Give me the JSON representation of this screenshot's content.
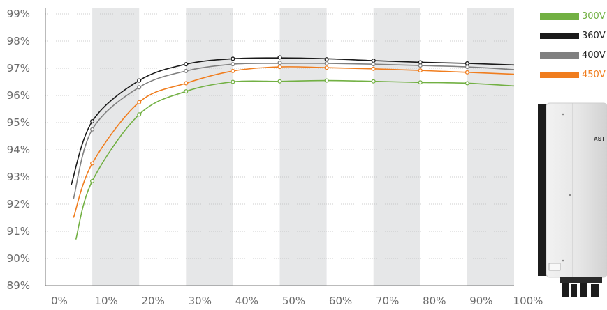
{
  "chart_data": {
    "type": "line",
    "xlabel": "",
    "ylabel": "",
    "x_ticks": [
      "0%",
      "10%",
      "20%",
      "30%",
      "40%",
      "50%",
      "60%",
      "70%",
      "80%",
      "90%",
      "100%"
    ],
    "y_ticks": [
      "99%",
      "98%",
      "97%",
      "96%",
      "95%",
      "94%",
      "93%",
      "92%",
      "91%",
      "90%",
      "89%"
    ],
    "xlim": [
      0,
      100
    ],
    "ylim": [
      89,
      99
    ],
    "grid": "horizontal dotted lines with alternating vertical gray bands",
    "legend_position": "right",
    "series": [
      {
        "name": "300V",
        "color": "#72b043",
        "curve": [
          [
            6.5,
            90.7
          ],
          [
            10,
            92.85
          ],
          [
            20,
            95.3
          ],
          [
            30,
            96.15
          ],
          [
            40,
            96.5
          ],
          [
            50,
            96.52
          ],
          [
            60,
            96.55
          ],
          [
            70,
            96.52
          ],
          [
            80,
            96.48
          ],
          [
            90,
            96.45
          ],
          [
            100,
            96.35
          ]
        ],
        "markers": [
          [
            10,
            92.85
          ],
          [
            20,
            95.3
          ],
          [
            30,
            96.15
          ],
          [
            40,
            96.5
          ],
          [
            50,
            96.52
          ],
          [
            60,
            96.55
          ],
          [
            70,
            96.52
          ],
          [
            80,
            96.48
          ],
          [
            90,
            96.45
          ]
        ]
      },
      {
        "name": "360V",
        "color": "#1a1a1a",
        "curve": [
          [
            5.5,
            92.7
          ],
          [
            10,
            95.05
          ],
          [
            20,
            96.55
          ],
          [
            30,
            97.15
          ],
          [
            40,
            97.35
          ],
          [
            50,
            97.38
          ],
          [
            60,
            97.35
          ],
          [
            70,
            97.28
          ],
          [
            80,
            97.22
          ],
          [
            90,
            97.18
          ],
          [
            100,
            97.12
          ]
        ],
        "markers": [
          [
            10,
            95.05
          ],
          [
            20,
            96.55
          ],
          [
            30,
            97.15
          ],
          [
            40,
            97.35
          ],
          [
            50,
            97.4
          ],
          [
            60,
            97.33
          ],
          [
            70,
            97.28
          ],
          [
            80,
            97.22
          ],
          [
            90,
            97.18
          ]
        ]
      },
      {
        "name": "400V",
        "color": "#808080",
        "curve": [
          [
            6,
            92.2
          ],
          [
            10,
            94.75
          ],
          [
            20,
            96.3
          ],
          [
            30,
            96.9
          ],
          [
            40,
            97.15
          ],
          [
            50,
            97.18
          ],
          [
            60,
            97.18
          ],
          [
            70,
            97.15
          ],
          [
            80,
            97.1
          ],
          [
            90,
            97.05
          ],
          [
            100,
            96.95
          ]
        ],
        "markers": [
          [
            10,
            94.75
          ],
          [
            20,
            96.3
          ],
          [
            30,
            96.9
          ],
          [
            40,
            97.15
          ],
          [
            50,
            97.2
          ],
          [
            60,
            97.18
          ],
          [
            70,
            97.15
          ],
          [
            80,
            97.1
          ],
          [
            90,
            97.05
          ]
        ]
      },
      {
        "name": "450V",
        "color": "#f07d1e",
        "curve": [
          [
            6,
            91.5
          ],
          [
            10,
            93.5
          ],
          [
            20,
            95.75
          ],
          [
            30,
            96.45
          ],
          [
            40,
            96.9
          ],
          [
            50,
            97.05
          ],
          [
            60,
            97.02
          ],
          [
            70,
            96.98
          ],
          [
            80,
            96.92
          ],
          [
            90,
            96.85
          ],
          [
            100,
            96.78
          ]
        ],
        "markers": [
          [
            10,
            93.5
          ],
          [
            20,
            95.75
          ],
          [
            30,
            96.45
          ],
          [
            40,
            96.9
          ],
          [
            50,
            97.05
          ],
          [
            60,
            97.02
          ],
          [
            70,
            96.98
          ],
          [
            80,
            96.92
          ],
          [
            90,
            96.85
          ]
        ]
      }
    ]
  },
  "device_logo": "AST",
  "device_label_icon": "inverter-illustration"
}
